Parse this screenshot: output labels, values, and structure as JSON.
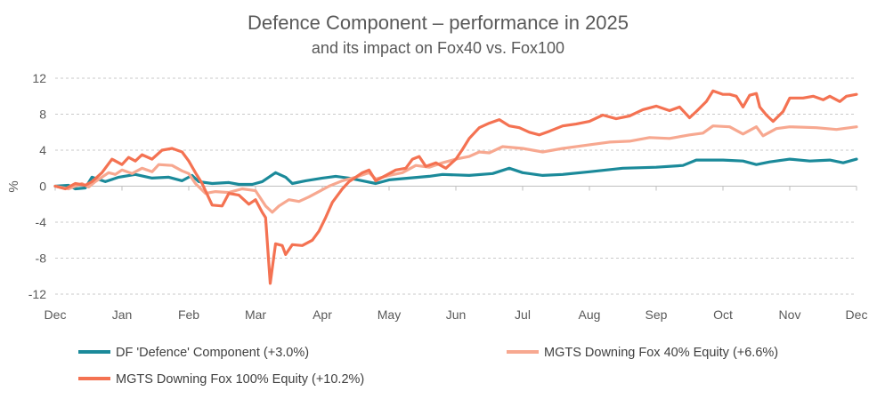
{
  "chart_data": {
    "type": "line",
    "title": "Defence Component – performance in 2025",
    "subtitle": "and its impact on Fox40 vs. Fox100",
    "ylabel": "%",
    "xlabel": "",
    "ylim": [
      -12,
      12
    ],
    "yticks": [
      12,
      8,
      4,
      0,
      -4,
      -8,
      -12
    ],
    "ytick_labels": [
      "12",
      "8",
      "4",
      "0",
      "-4",
      "-8",
      "-12"
    ],
    "xlim": [
      0,
      12
    ],
    "xticks": [
      "Dec",
      "Jan",
      "Feb",
      "Mar",
      "Apr",
      "May",
      "Jun",
      "Jul",
      "Aug",
      "Sep",
      "Oct",
      "Nov",
      "Dec"
    ],
    "grid": "horizontal dashed",
    "legend_position": "bottom",
    "series": [
      {
        "name": "DF 'Defence' Component (+3.0%)",
        "color": "#1b8a9a",
        "points": [
          [
            0,
            0
          ],
          [
            0.2,
            0.1
          ],
          [
            0.3,
            -0.3
          ],
          [
            0.45,
            -0.2
          ],
          [
            0.55,
            1.0
          ],
          [
            0.75,
            0.5
          ],
          [
            0.95,
            1.0
          ],
          [
            1.2,
            1.3
          ],
          [
            1.45,
            0.9
          ],
          [
            1.7,
            1.0
          ],
          [
            1.9,
            0.6
          ],
          [
            2.05,
            1.2
          ],
          [
            2.15,
            0.5
          ],
          [
            2.35,
            0.3
          ],
          [
            2.6,
            0.4
          ],
          [
            2.75,
            0.2
          ],
          [
            2.95,
            0.2
          ],
          [
            3.1,
            0.5
          ],
          [
            3.3,
            1.5
          ],
          [
            3.45,
            1.0
          ],
          [
            3.55,
            0.3
          ],
          [
            3.75,
            0.6
          ],
          [
            4.0,
            0.9
          ],
          [
            4.2,
            1.1
          ],
          [
            4.4,
            0.9
          ],
          [
            4.6,
            0.6
          ],
          [
            4.8,
            0.3
          ],
          [
            5.0,
            0.7
          ],
          [
            5.3,
            0.9
          ],
          [
            5.6,
            1.1
          ],
          [
            5.8,
            1.3
          ],
          [
            6.2,
            1.2
          ],
          [
            6.55,
            1.4
          ],
          [
            6.8,
            2.0
          ],
          [
            7.0,
            1.5
          ],
          [
            7.3,
            1.2
          ],
          [
            7.6,
            1.3
          ],
          [
            8.0,
            1.6
          ],
          [
            8.5,
            2.0
          ],
          [
            9.0,
            2.1
          ],
          [
            9.4,
            2.3
          ],
          [
            9.6,
            2.9
          ],
          [
            10.0,
            2.9
          ],
          [
            10.3,
            2.8
          ],
          [
            10.5,
            2.4
          ],
          [
            10.7,
            2.7
          ],
          [
            11.0,
            3.0
          ],
          [
            11.3,
            2.8
          ],
          [
            11.6,
            2.9
          ],
          [
            11.8,
            2.6
          ],
          [
            12.0,
            3.0
          ]
        ]
      },
      {
        "name": "MGTS Downing Fox 40% Equity (+6.6%)",
        "color": "#f7a890",
        "points": [
          [
            0,
            0
          ],
          [
            0.2,
            -0.3
          ],
          [
            0.4,
            0.3
          ],
          [
            0.5,
            -0.1
          ],
          [
            0.6,
            0.5
          ],
          [
            0.8,
            1.5
          ],
          [
            0.9,
            1.3
          ],
          [
            1.0,
            1.8
          ],
          [
            1.15,
            1.4
          ],
          [
            1.3,
            2.0
          ],
          [
            1.45,
            1.6
          ],
          [
            1.55,
            2.4
          ],
          [
            1.75,
            2.3
          ],
          [
            1.9,
            1.7
          ],
          [
            2.0,
            1.4
          ],
          [
            2.1,
            0.3
          ],
          [
            2.25,
            -0.8
          ],
          [
            2.4,
            -0.6
          ],
          [
            2.6,
            -0.7
          ],
          [
            2.8,
            -0.3
          ],
          [
            3.0,
            -0.5
          ],
          [
            3.15,
            -2.2
          ],
          [
            3.25,
            -2.9
          ],
          [
            3.35,
            -2.2
          ],
          [
            3.5,
            -1.5
          ],
          [
            3.65,
            -1.7
          ],
          [
            3.8,
            -1.2
          ],
          [
            3.95,
            -0.6
          ],
          [
            4.1,
            0.0
          ],
          [
            4.3,
            0.6
          ],
          [
            4.5,
            1.0
          ],
          [
            4.7,
            1.5
          ],
          [
            4.8,
            0.8
          ],
          [
            5.0,
            1.2
          ],
          [
            5.2,
            1.5
          ],
          [
            5.4,
            2.3
          ],
          [
            5.6,
            2.1
          ],
          [
            5.8,
            2.6
          ],
          [
            6.0,
            3.0
          ],
          [
            6.2,
            3.3
          ],
          [
            6.35,
            3.8
          ],
          [
            6.5,
            3.7
          ],
          [
            6.7,
            4.4
          ],
          [
            7.0,
            4.2
          ],
          [
            7.3,
            3.8
          ],
          [
            7.6,
            4.2
          ],
          [
            8.0,
            4.6
          ],
          [
            8.3,
            4.9
          ],
          [
            8.6,
            5.0
          ],
          [
            8.9,
            5.4
          ],
          [
            9.2,
            5.3
          ],
          [
            9.5,
            5.7
          ],
          [
            9.7,
            5.9
          ],
          [
            9.85,
            6.7
          ],
          [
            10.1,
            6.6
          ],
          [
            10.3,
            5.8
          ],
          [
            10.5,
            6.6
          ],
          [
            10.6,
            5.6
          ],
          [
            10.8,
            6.4
          ],
          [
            11.0,
            6.6
          ],
          [
            11.4,
            6.5
          ],
          [
            11.7,
            6.3
          ],
          [
            12.0,
            6.6
          ]
        ]
      },
      {
        "name": "MGTS Downing Fox 100% Equity (+10.2%)",
        "color": "#f47252",
        "points": [
          [
            0,
            0
          ],
          [
            0.15,
            -0.3
          ],
          [
            0.3,
            0.3
          ],
          [
            0.45,
            0.1
          ],
          [
            0.55,
            0.5
          ],
          [
            0.7,
            1.5
          ],
          [
            0.85,
            3.0
          ],
          [
            1.0,
            2.4
          ],
          [
            1.1,
            3.2
          ],
          [
            1.2,
            2.8
          ],
          [
            1.3,
            3.5
          ],
          [
            1.45,
            3.0
          ],
          [
            1.6,
            4.0
          ],
          [
            1.75,
            4.2
          ],
          [
            1.9,
            3.8
          ],
          [
            2.0,
            2.8
          ],
          [
            2.1,
            1.5
          ],
          [
            2.2,
            0.3
          ],
          [
            2.35,
            -2.1
          ],
          [
            2.5,
            -2.2
          ],
          [
            2.6,
            -0.8
          ],
          [
            2.75,
            -1.0
          ],
          [
            2.9,
            -2.0
          ],
          [
            3.0,
            -1.5
          ],
          [
            3.1,
            -2.9
          ],
          [
            3.15,
            -3.5
          ],
          [
            3.22,
            -10.8
          ],
          [
            3.3,
            -6.4
          ],
          [
            3.4,
            -6.6
          ],
          [
            3.45,
            -7.6
          ],
          [
            3.55,
            -6.5
          ],
          [
            3.7,
            -6.6
          ],
          [
            3.85,
            -6.0
          ],
          [
            3.95,
            -5.0
          ],
          [
            4.05,
            -3.5
          ],
          [
            4.15,
            -1.8
          ],
          [
            4.3,
            -0.3
          ],
          [
            4.4,
            0.5
          ],
          [
            4.5,
            1.0
          ],
          [
            4.6,
            1.5
          ],
          [
            4.7,
            1.8
          ],
          [
            4.8,
            0.6
          ],
          [
            4.95,
            1.2
          ],
          [
            5.1,
            1.8
          ],
          [
            5.25,
            2.0
          ],
          [
            5.35,
            3.0
          ],
          [
            5.45,
            3.3
          ],
          [
            5.55,
            2.2
          ],
          [
            5.7,
            2.6
          ],
          [
            5.85,
            2.0
          ],
          [
            6.0,
            3.0
          ],
          [
            6.1,
            4.1
          ],
          [
            6.2,
            5.3
          ],
          [
            6.35,
            6.5
          ],
          [
            6.5,
            7.0
          ],
          [
            6.65,
            7.4
          ],
          [
            6.8,
            6.7
          ],
          [
            6.95,
            6.5
          ],
          [
            7.1,
            6.0
          ],
          [
            7.25,
            5.7
          ],
          [
            7.4,
            6.1
          ],
          [
            7.6,
            6.7
          ],
          [
            7.8,
            6.9
          ],
          [
            8.0,
            7.2
          ],
          [
            8.2,
            7.9
          ],
          [
            8.4,
            7.5
          ],
          [
            8.6,
            7.8
          ],
          [
            8.8,
            8.5
          ],
          [
            9.0,
            8.9
          ],
          [
            9.2,
            8.4
          ],
          [
            9.35,
            8.8
          ],
          [
            9.5,
            7.6
          ],
          [
            9.6,
            8.3
          ],
          [
            9.75,
            9.4
          ],
          [
            9.85,
            10.6
          ],
          [
            10.0,
            10.2
          ],
          [
            10.1,
            10.2
          ],
          [
            10.2,
            10.0
          ],
          [
            10.3,
            8.8
          ],
          [
            10.4,
            10.1
          ],
          [
            10.5,
            10.3
          ],
          [
            10.55,
            8.8
          ],
          [
            10.65,
            7.9
          ],
          [
            10.75,
            7.2
          ],
          [
            10.9,
            8.3
          ],
          [
            11.0,
            9.8
          ],
          [
            11.2,
            9.8
          ],
          [
            11.35,
            10.0
          ],
          [
            11.5,
            9.6
          ],
          [
            11.6,
            10.0
          ],
          [
            11.75,
            9.4
          ],
          [
            11.85,
            10.0
          ],
          [
            12.0,
            10.2
          ]
        ]
      }
    ]
  }
}
